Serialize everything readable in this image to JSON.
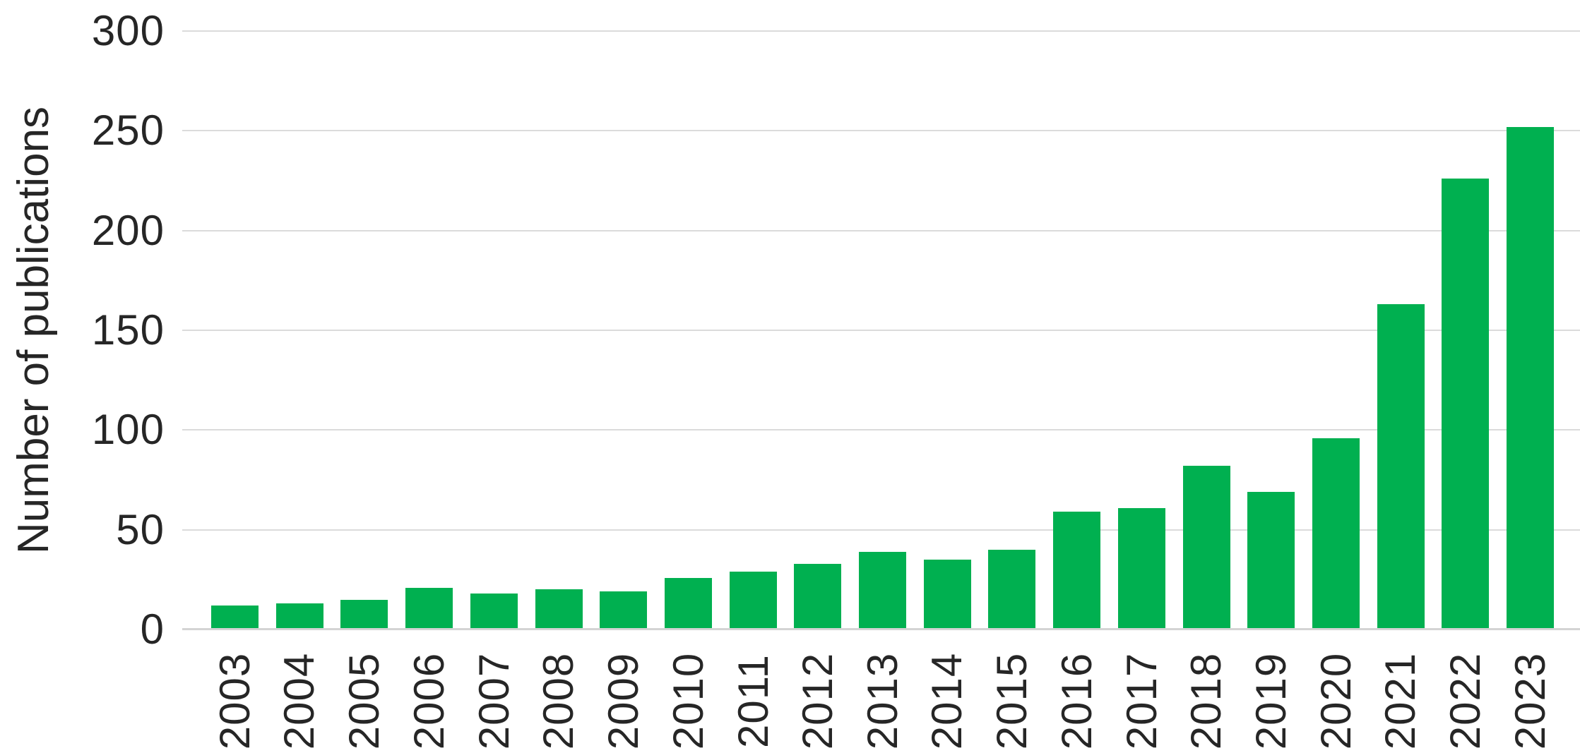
{
  "chart_data": {
    "type": "bar",
    "title": "",
    "xlabel": "",
    "ylabel": "Number of publications",
    "categories": [
      "2003",
      "2004",
      "2005",
      "2006",
      "2007",
      "2008",
      "2009",
      "2010",
      "2011",
      "2012",
      "2013",
      "2014",
      "2015",
      "2016",
      "2017",
      "2018",
      "2019",
      "2020",
      "2021",
      "2022",
      "2023"
    ],
    "values": [
      12,
      13,
      15,
      21,
      18,
      20,
      19,
      26,
      29,
      33,
      39,
      35,
      40,
      59,
      61,
      82,
      69,
      96,
      163,
      226,
      252
    ],
    "ylim": [
      0,
      300
    ],
    "yticks": [
      0,
      50,
      100,
      150,
      200,
      250,
      300
    ],
    "grid": true,
    "legend": false,
    "bar_color": "#00B050",
    "gridline_color": "#DBDBDB",
    "axis_line_color": "#D4D4D4",
    "text_color": "#262626"
  }
}
